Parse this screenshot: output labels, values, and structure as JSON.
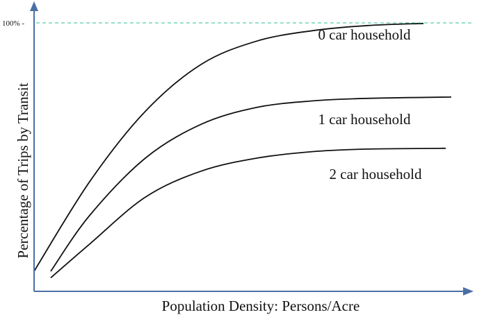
{
  "chart_data": {
    "type": "line",
    "title": "",
    "xlabel": "Population Density: Persons/Acre",
    "ylabel": "Percentage of Trips by Transit",
    "ylim": [
      0,
      100
    ],
    "y_ticks": [
      {
        "value": 100,
        "label": "100% -"
      }
    ],
    "reference_line": {
      "y": 100,
      "style": "dashed",
      "color": "#2fbf9a"
    },
    "grid": false,
    "legend": "inline",
    "series": [
      {
        "name": "0 car household",
        "points": [
          [
            0,
            4.5
          ],
          [
            10,
            39
          ],
          [
            20,
            66
          ],
          [
            30,
            84
          ],
          [
            40,
            93
          ],
          [
            50,
            97
          ],
          [
            60,
            99
          ],
          [
            70,
            99.8
          ]
        ]
      },
      {
        "name": "1 car household",
        "points": [
          [
            3,
            4.5
          ],
          [
            10,
            26
          ],
          [
            20,
            48
          ],
          [
            30,
            61
          ],
          [
            40,
            67.5
          ],
          [
            50,
            70
          ],
          [
            60,
            71
          ],
          [
            75,
            71.5
          ]
        ]
      },
      {
        "name": "2 car household",
        "points": [
          [
            3,
            2
          ],
          [
            10,
            15
          ],
          [
            20,
            33
          ],
          [
            30,
            43
          ],
          [
            40,
            48
          ],
          [
            50,
            50.5
          ],
          [
            60,
            51.5
          ],
          [
            74,
            51.8
          ]
        ]
      }
    ],
    "axis_color": "#4a6fa5"
  }
}
